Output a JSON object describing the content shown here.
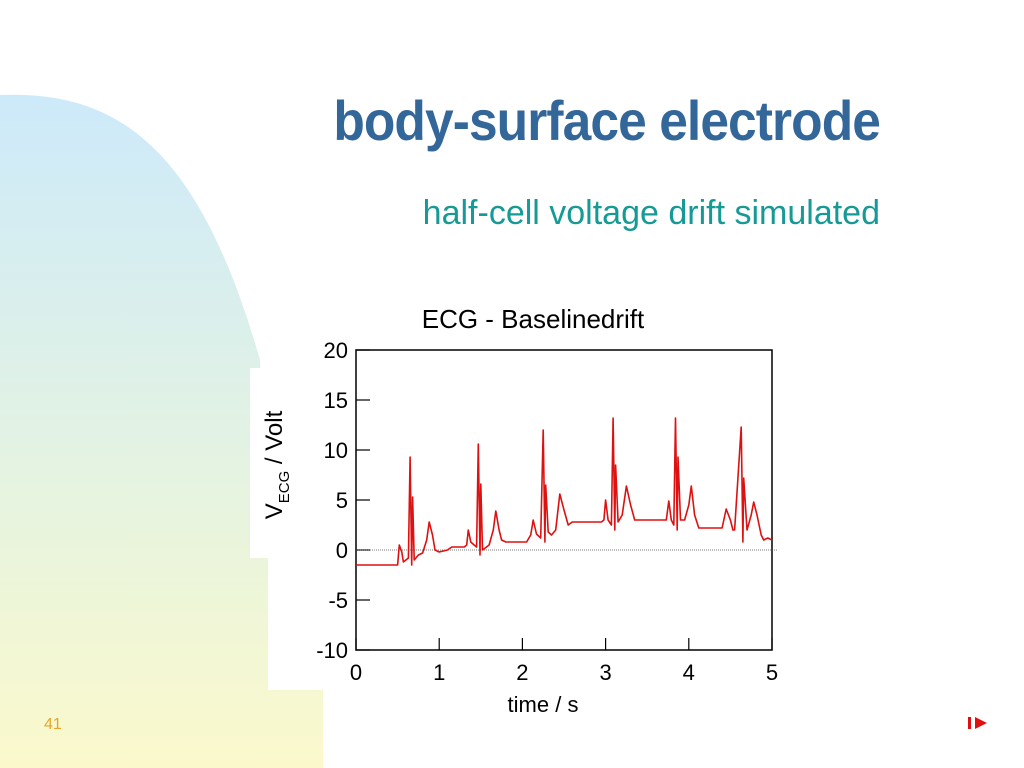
{
  "slide": {
    "title": "body-surface electrode",
    "subtitle": "half-cell voltage drift simulated",
    "number": "41",
    "next_icon": "next-slide-arrow-icon"
  },
  "colors": {
    "title": "#336699",
    "subtitle": "#169a96",
    "trace": "#dd1111",
    "slide_number": "#e8a42a"
  },
  "chart_data": {
    "type": "line",
    "title": "ECG - Baselinedrift",
    "xlabel": "time / s",
    "ylabel_main": "V",
    "ylabel_sub": "ECG",
    "ylabel_unit": " / Volt",
    "xlim": [
      0,
      5
    ],
    "ylim": [
      -10,
      20
    ],
    "xticks": [
      0,
      1,
      2,
      3,
      4,
      5
    ],
    "yticks": [
      -10,
      -5,
      0,
      5,
      10,
      15,
      20
    ],
    "xtick_labels": [
      "0",
      "1",
      "2",
      "3",
      "4",
      "5"
    ],
    "ytick_labels": [
      "-10",
      "-5",
      "0",
      "5",
      "10",
      "15",
      "20"
    ],
    "zero_line": true,
    "grid": false,
    "series": [
      {
        "points": [
          [
            0.0,
            -1.5
          ],
          [
            0.5,
            -1.5
          ],
          [
            0.52,
            0.5
          ],
          [
            0.55,
            -0.2
          ],
          [
            0.57,
            -1.2
          ],
          [
            0.6,
            -1.0
          ],
          [
            0.63,
            -0.8
          ],
          [
            0.65,
            9.3
          ],
          [
            0.67,
            -1.5
          ],
          [
            0.68,
            5.3
          ],
          [
            0.7,
            -1.0
          ],
          [
            0.72,
            -0.8
          ],
          [
            0.75,
            -0.5
          ],
          [
            0.8,
            -0.3
          ],
          [
            0.85,
            1.0
          ],
          [
            0.88,
            2.8
          ],
          [
            0.92,
            1.5
          ],
          [
            0.95,
            0.0
          ],
          [
            1.0,
            -0.2
          ],
          [
            1.1,
            0.0
          ],
          [
            1.15,
            0.3
          ],
          [
            1.3,
            0.3
          ],
          [
            1.33,
            0.5
          ],
          [
            1.35,
            2.0
          ],
          [
            1.38,
            0.8
          ],
          [
            1.42,
            0.5
          ],
          [
            1.45,
            0.3
          ],
          [
            1.47,
            10.6
          ],
          [
            1.49,
            -0.5
          ],
          [
            1.5,
            6.6
          ],
          [
            1.52,
            0.0
          ],
          [
            1.6,
            0.5
          ],
          [
            1.65,
            2.0
          ],
          [
            1.68,
            3.9
          ],
          [
            1.72,
            2.0
          ],
          [
            1.75,
            1.0
          ],
          [
            1.8,
            0.8
          ],
          [
            1.9,
            0.8
          ],
          [
            2.05,
            0.8
          ],
          [
            2.1,
            1.5
          ],
          [
            2.13,
            3.0
          ],
          [
            2.17,
            1.6
          ],
          [
            2.22,
            1.2
          ],
          [
            2.25,
            12.0
          ],
          [
            2.27,
            0.8
          ],
          [
            2.28,
            6.5
          ],
          [
            2.31,
            1.8
          ],
          [
            2.35,
            1.5
          ],
          [
            2.4,
            2.0
          ],
          [
            2.45,
            5.6
          ],
          [
            2.5,
            4.0
          ],
          [
            2.55,
            2.5
          ],
          [
            2.6,
            2.8
          ],
          [
            2.95,
            2.8
          ],
          [
            2.98,
            3.0
          ],
          [
            3.0,
            5.0
          ],
          [
            3.03,
            3.0
          ],
          [
            3.07,
            2.5
          ],
          [
            3.09,
            13.2
          ],
          [
            3.11,
            2.0
          ],
          [
            3.12,
            8.5
          ],
          [
            3.15,
            2.8
          ],
          [
            3.2,
            3.5
          ],
          [
            3.25,
            6.4
          ],
          [
            3.3,
            4.5
          ],
          [
            3.35,
            3.0
          ],
          [
            3.4,
            3.0
          ],
          [
            3.7,
            3.0
          ],
          [
            3.73,
            3.0
          ],
          [
            3.76,
            4.9
          ],
          [
            3.79,
            3.0
          ],
          [
            3.82,
            2.5
          ],
          [
            3.84,
            13.2
          ],
          [
            3.86,
            2.0
          ],
          [
            3.87,
            9.3
          ],
          [
            3.9,
            3.0
          ],
          [
            3.95,
            3.0
          ],
          [
            4.0,
            4.5
          ],
          [
            4.03,
            6.4
          ],
          [
            4.07,
            3.5
          ],
          [
            4.12,
            2.2
          ],
          [
            4.4,
            2.2
          ],
          [
            4.45,
            4.1
          ],
          [
            4.5,
            3.0
          ],
          [
            4.53,
            2.0
          ],
          [
            4.55,
            2.0
          ],
          [
            4.63,
            12.3
          ],
          [
            4.65,
            0.8
          ],
          [
            4.66,
            7.2
          ],
          [
            4.7,
            2.0
          ],
          [
            4.75,
            3.5
          ],
          [
            4.78,
            4.8
          ],
          [
            4.82,
            3.5
          ],
          [
            4.87,
            1.5
          ],
          [
            4.9,
            1.0
          ],
          [
            4.95,
            1.2
          ],
          [
            5.0,
            1.0
          ]
        ]
      }
    ]
  }
}
